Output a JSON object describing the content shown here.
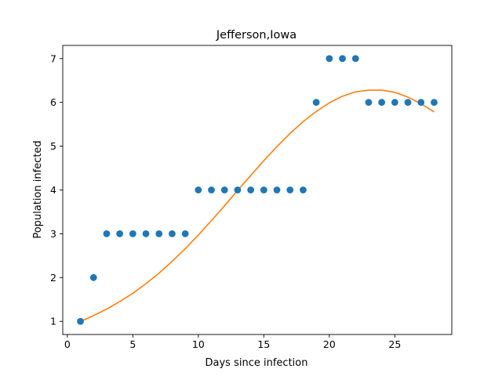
{
  "chart_data": {
    "type": "scatter",
    "title": "Jefferson,Iowa",
    "xlabel": "Days since infection",
    "ylabel": "Population infected",
    "xlim": [
      -0.35,
      29.35
    ],
    "ylim": [
      0.7,
      7.3
    ],
    "xticks": [
      0,
      5,
      10,
      15,
      20,
      25
    ],
    "yticks": [
      1,
      2,
      3,
      4,
      5,
      6,
      7
    ],
    "grid": false,
    "series": [
      {
        "kind": "scatter",
        "color": "#1f77b4",
        "x": [
          1,
          2,
          3,
          4,
          5,
          6,
          7,
          8,
          9,
          10,
          11,
          12,
          13,
          14,
          15,
          16,
          17,
          18,
          19,
          20,
          21,
          22,
          23,
          24,
          25,
          26,
          27,
          28
        ],
        "y": [
          1,
          2,
          3,
          3,
          3,
          3,
          3,
          3,
          3,
          4,
          4,
          4,
          4,
          4,
          4,
          4,
          4,
          4,
          6,
          7,
          7,
          7,
          6,
          6,
          6,
          6,
          6,
          6
        ]
      },
      {
        "kind": "line",
        "color": "#ff7f0e",
        "x": [
          1,
          2,
          3,
          4,
          5,
          6,
          7,
          8,
          9,
          10,
          11,
          12,
          13,
          14,
          15,
          16,
          17,
          18,
          19,
          20,
          21,
          22,
          23,
          24,
          25,
          26,
          27,
          28
        ],
        "y": [
          1.0,
          1.13,
          1.28,
          1.45,
          1.64,
          1.86,
          2.1,
          2.37,
          2.66,
          2.97,
          3.3,
          3.64,
          3.99,
          4.33,
          4.67,
          4.99,
          5.29,
          5.56,
          5.79,
          5.99,
          6.14,
          6.24,
          6.28,
          6.28,
          6.23,
          6.12,
          5.97,
          5.78
        ]
      }
    ]
  }
}
